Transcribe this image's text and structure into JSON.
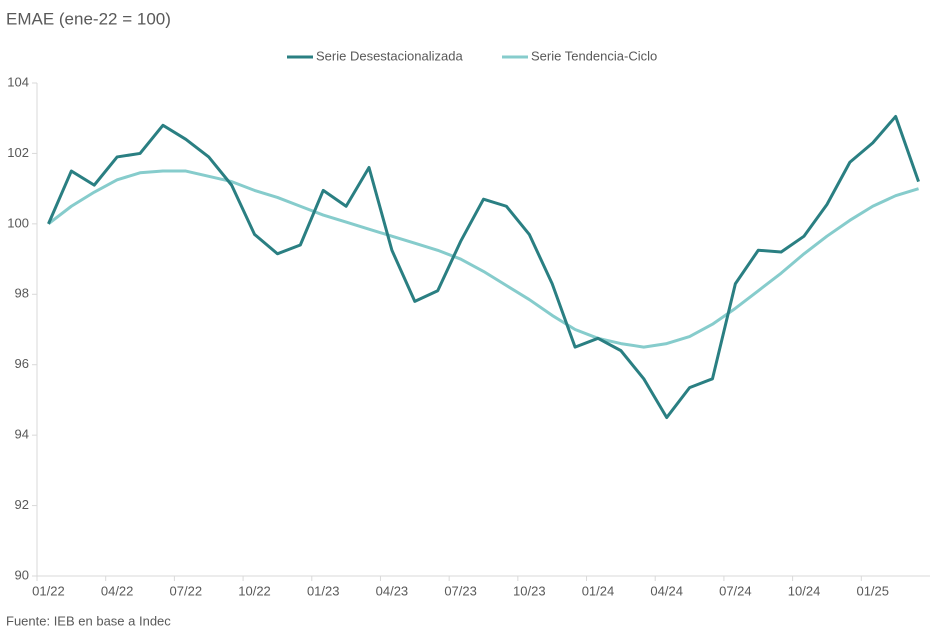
{
  "chart_data": {
    "type": "line",
    "title": "EMAE  (ene-22 = 100)",
    "source": "Fuente: IEB en base a Indec",
    "categories": [
      "01/22",
      null,
      null,
      "04/22",
      null,
      null,
      "07/22",
      null,
      null,
      "10/22",
      null,
      null,
      "01/23",
      null,
      null,
      "04/23",
      null,
      null,
      "07/23",
      null,
      null,
      "10/23",
      null,
      null,
      "01/24",
      null,
      null,
      "04/24",
      null,
      null,
      "07/24",
      null,
      null,
      "10/24",
      null,
      null,
      "01/25",
      null,
      null
    ],
    "series": [
      {
        "name": "Serie Desestacionalizada",
        "color": "#2a7f82",
        "values": [
          100,
          101.5,
          101.1,
          101.9,
          102.0,
          102.8,
          102.4,
          101.9,
          101.1,
          99.7,
          99.15,
          99.4,
          100.95,
          100.5,
          101.6,
          99.25,
          97.8,
          98.1,
          99.5,
          100.7,
          100.5,
          99.7,
          98.3,
          96.5,
          96.75,
          96.4,
          95.6,
          94.5,
          95.35,
          95.6,
          98.3,
          99.25,
          99.2,
          99.65,
          100.55,
          101.75,
          102.3,
          103.05,
          101.2
        ]
      },
      {
        "name": "Serie Tendencia-Ciclo",
        "color": "#86cccc",
        "values": [
          100,
          100.5,
          100.9,
          101.25,
          101.45,
          101.5,
          101.5,
          101.35,
          101.2,
          100.95,
          100.75,
          100.5,
          100.25,
          100.05,
          99.85,
          99.65,
          99.45,
          99.25,
          99.0,
          98.65,
          98.25,
          97.85,
          97.4,
          97.0,
          96.75,
          96.6,
          96.5,
          96.6,
          96.8,
          97.15,
          97.6,
          98.1,
          98.6,
          99.15,
          99.65,
          100.1,
          100.5,
          100.8,
          101.0
        ]
      }
    ],
    "ylim": [
      90,
      104
    ],
    "yticks": [
      90,
      92,
      94,
      96,
      98,
      100,
      102,
      104
    ],
    "legend": "top"
  }
}
